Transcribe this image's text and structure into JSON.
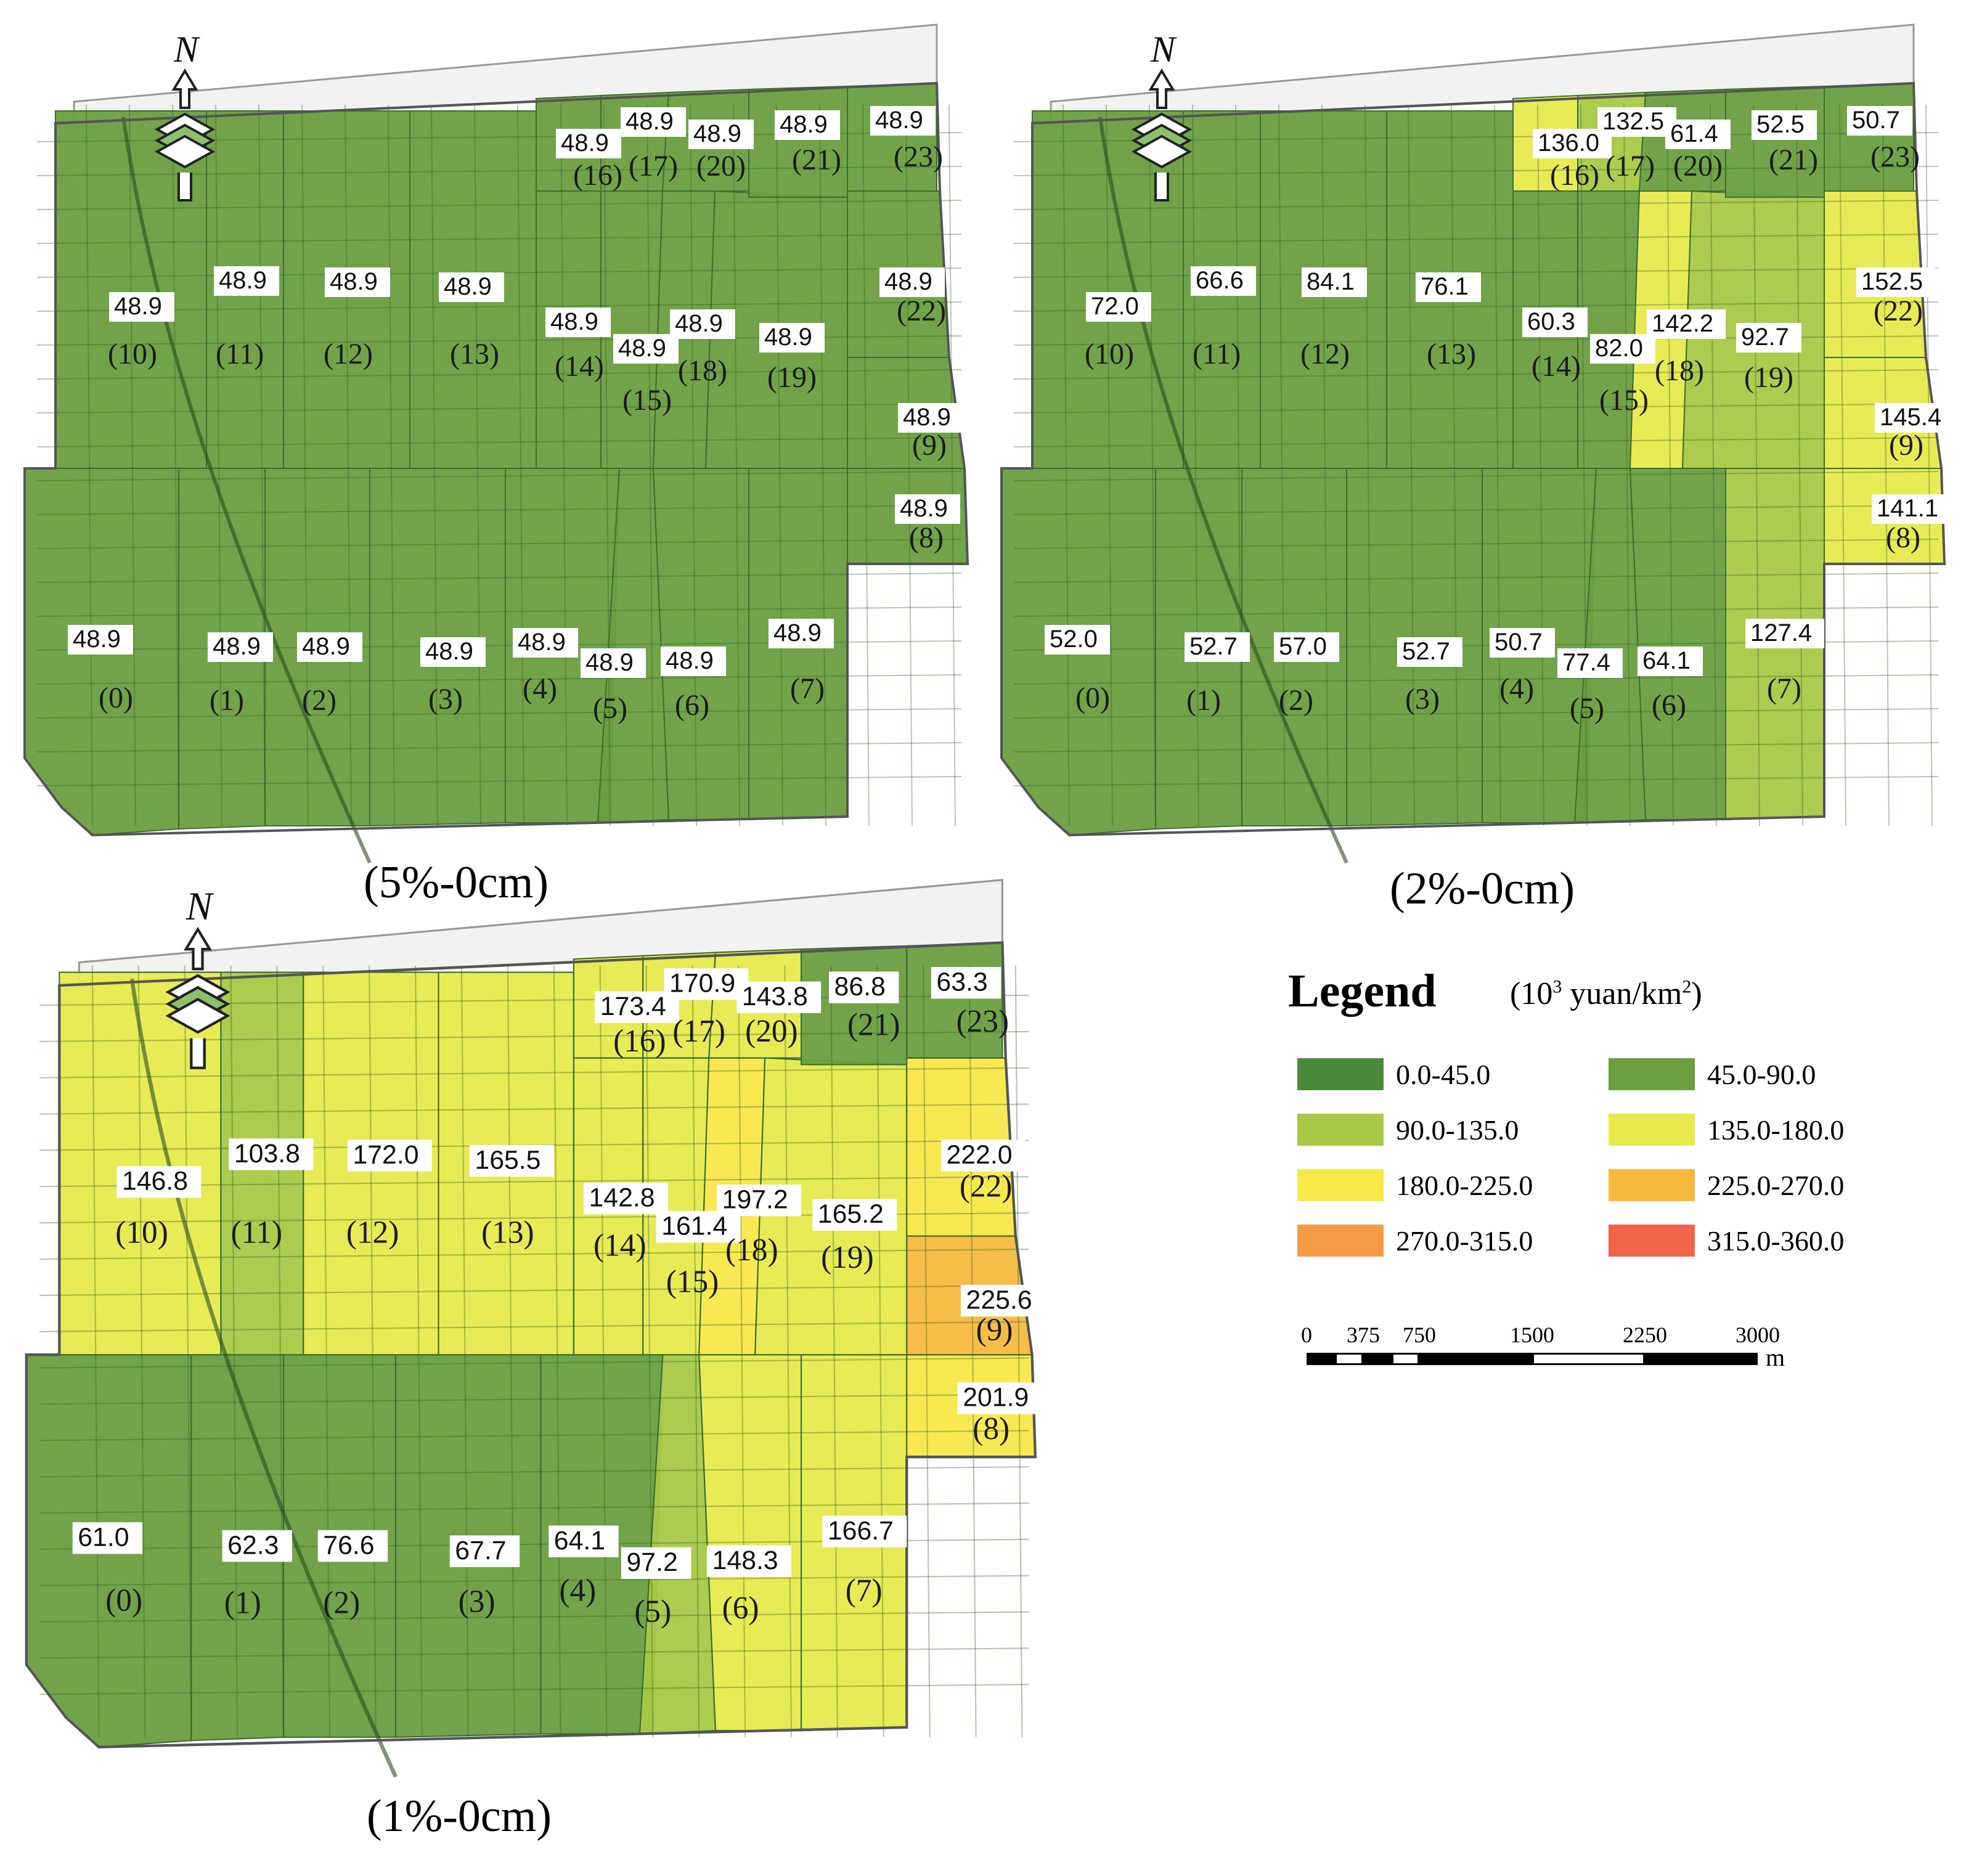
{
  "panels": [
    {
      "key": "p5",
      "caption": "(5%-0cm)",
      "zones": [
        {
          "id": "(0)",
          "value": "48.9"
        },
        {
          "id": "(1)",
          "value": "48.9"
        },
        {
          "id": "(2)",
          "value": "48.9"
        },
        {
          "id": "(3)",
          "value": "48.9"
        },
        {
          "id": "(4)",
          "value": "48.9"
        },
        {
          "id": "(5)",
          "value": "48.9"
        },
        {
          "id": "(6)",
          "value": "48.9"
        },
        {
          "id": "(7)",
          "value": "48.9"
        },
        {
          "id": "(8)",
          "value": "48.9"
        },
        {
          "id": "(9)",
          "value": "48.9"
        },
        {
          "id": "(10)",
          "value": "48.9"
        },
        {
          "id": "(11)",
          "value": "48.9"
        },
        {
          "id": "(12)",
          "value": "48.9"
        },
        {
          "id": "(13)",
          "value": "48.9"
        },
        {
          "id": "(14)",
          "value": "48.9"
        },
        {
          "id": "(15)",
          "value": "48.9"
        },
        {
          "id": "(16)",
          "value": "48.9"
        },
        {
          "id": "(17)",
          "value": "48.9"
        },
        {
          "id": "(18)",
          "value": "48.9"
        },
        {
          "id": "(19)",
          "value": "48.9"
        },
        {
          "id": "(20)",
          "value": "48.9"
        },
        {
          "id": "(21)",
          "value": "48.9"
        },
        {
          "id": "(22)",
          "value": "48.9"
        },
        {
          "id": "(23)",
          "value": "48.9"
        }
      ]
    },
    {
      "key": "p2",
      "caption": "(2%-0cm)",
      "zones": [
        {
          "id": "(0)",
          "value": "52.0"
        },
        {
          "id": "(1)",
          "value": "52.7"
        },
        {
          "id": "(2)",
          "value": "57.0"
        },
        {
          "id": "(3)",
          "value": "52.7"
        },
        {
          "id": "(4)",
          "value": "50.7"
        },
        {
          "id": "(5)",
          "value": "77.4"
        },
        {
          "id": "(6)",
          "value": "64.1"
        },
        {
          "id": "(7)",
          "value": "127.4"
        },
        {
          "id": "(8)",
          "value": "141.1"
        },
        {
          "id": "(9)",
          "value": "145.4"
        },
        {
          "id": "(10)",
          "value": "72.0"
        },
        {
          "id": "(11)",
          "value": "66.6"
        },
        {
          "id": "(12)",
          "value": "84.1"
        },
        {
          "id": "(13)",
          "value": "76.1"
        },
        {
          "id": "(14)",
          "value": "60.3"
        },
        {
          "id": "(15)",
          "value": "82.0"
        },
        {
          "id": "(16)",
          "value": "136.0"
        },
        {
          "id": "(17)",
          "value": "132.5"
        },
        {
          "id": "(18)",
          "value": "142.2"
        },
        {
          "id": "(19)",
          "value": "92.7"
        },
        {
          "id": "(20)",
          "value": "61.4"
        },
        {
          "id": "(21)",
          "value": "52.5"
        },
        {
          "id": "(22)",
          "value": "152.5"
        },
        {
          "id": "(23)",
          "value": "50.7"
        }
      ]
    },
    {
      "key": "p1",
      "caption": "(1%-0cm)",
      "zones": [
        {
          "id": "(0)",
          "value": "61.0"
        },
        {
          "id": "(1)",
          "value": "62.3"
        },
        {
          "id": "(2)",
          "value": "76.6"
        },
        {
          "id": "(3)",
          "value": "67.7"
        },
        {
          "id": "(4)",
          "value": "64.1"
        },
        {
          "id": "(5)",
          "value": "97.2"
        },
        {
          "id": "(6)",
          "value": "148.3"
        },
        {
          "id": "(7)",
          "value": "166.7"
        },
        {
          "id": "(8)",
          "value": "201.9"
        },
        {
          "id": "(9)",
          "value": "225.6"
        },
        {
          "id": "(10)",
          "value": "146.8"
        },
        {
          "id": "(11)",
          "value": "103.8"
        },
        {
          "id": "(12)",
          "value": "172.0"
        },
        {
          "id": "(13)",
          "value": "165.5"
        },
        {
          "id": "(14)",
          "value": "142.8"
        },
        {
          "id": "(15)",
          "value": "161.4"
        },
        {
          "id": "(16)",
          "value": "173.4"
        },
        {
          "id": "(17)",
          "value": "170.9"
        },
        {
          "id": "(18)",
          "value": "197.2"
        },
        {
          "id": "(19)",
          "value": "165.2"
        },
        {
          "id": "(20)",
          "value": "143.8"
        },
        {
          "id": "(21)",
          "value": "86.8"
        },
        {
          "id": "(22)",
          "value": "222.0"
        },
        {
          "id": "(23)",
          "value": "63.3"
        }
      ]
    }
  ],
  "legend": {
    "title": "Legend",
    "unit_prefix": "(10",
    "unit_sup1": "3",
    "unit_mid": " yuan/km",
    "unit_sup2": "2",
    "unit_suffix": ")",
    "classes": [
      {
        "label": "0.0-45.0",
        "color": "#4b8a3c"
      },
      {
        "label": "45.0-90.0",
        "color": "#6a9e40"
      },
      {
        "label": "90.0-135.0",
        "color": "#a8c846"
      },
      {
        "label": "135.0-180.0",
        "color": "#e6ea4c"
      },
      {
        "label": "180.0-225.0",
        "color": "#f8e84a"
      },
      {
        "label": "225.0-270.0",
        "color": "#f5b93e"
      },
      {
        "label": "270.0-315.0",
        "color": "#f59a45"
      },
      {
        "label": "315.0-360.0",
        "color": "#f0654a"
      }
    ]
  },
  "scale_bar": {
    "ticks": [
      "0",
      "375",
      "750",
      "1500",
      "2250",
      "3000"
    ],
    "unit": "m"
  },
  "north_label": "N"
}
